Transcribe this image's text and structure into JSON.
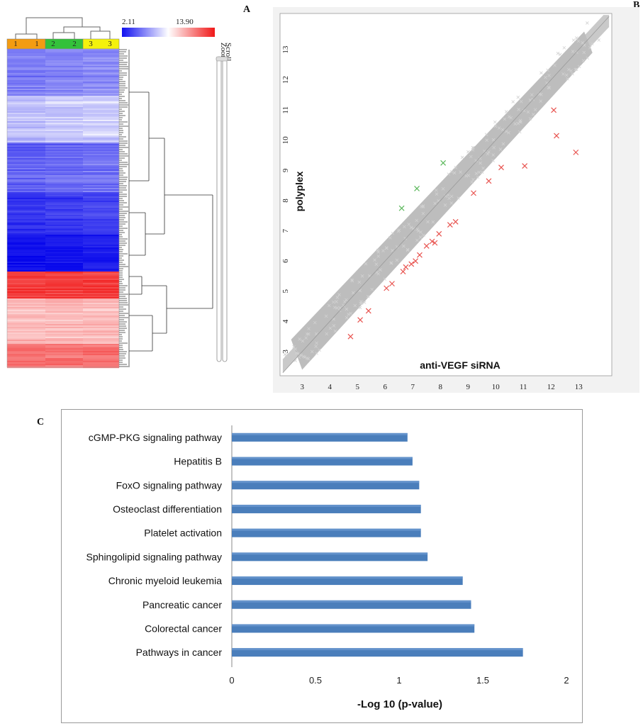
{
  "panels": {
    "a_label": "A",
    "b_label": "B",
    "c_label": "C"
  },
  "heatmap": {
    "scale_min": "2.11",
    "scale_max": "13.90",
    "sample_labels": [
      "1",
      "1",
      "2",
      "2",
      "3",
      "3"
    ],
    "side_controls": [
      "Zoom",
      "Scroll"
    ],
    "colors": {
      "low": "#1010f0",
      "mid": "#ffffff",
      "high": "#f01818",
      "group1": "#f39c12",
      "group2": "#33c13a",
      "group3": "#f4f20c"
    }
  },
  "chart_data": [
    {
      "id": "scatter",
      "type": "scatter",
      "xlabel": "anti-VEGF siRNA",
      "ylabel": "polyplex",
      "xlim": [
        2.2,
        14.2
      ],
      "ylim": [
        2.2,
        14.2
      ],
      "xticks": [
        3,
        4,
        5,
        6,
        7,
        8,
        9,
        10,
        11,
        12,
        13
      ],
      "yticks": [
        3,
        4,
        5,
        6,
        7,
        8,
        9,
        10,
        11,
        12,
        13
      ],
      "colors": {
        "bulk": "#c8c8c8",
        "up": "#5cb85c",
        "down": "#e8534f"
      },
      "up_points": [
        [
          6.6,
          7.75
        ],
        [
          7.15,
          8.4
        ],
        [
          8.1,
          9.25
        ]
      ],
      "down_points": [
        [
          4.75,
          3.5
        ],
        [
          5.1,
          4.05
        ],
        [
          5.4,
          4.35
        ],
        [
          6.05,
          5.1
        ],
        [
          6.25,
          5.25
        ],
        [
          6.65,
          5.65
        ],
        [
          6.75,
          5.8
        ],
        [
          6.95,
          5.9
        ],
        [
          7.1,
          6.0
        ],
        [
          7.25,
          6.2
        ],
        [
          7.5,
          6.5
        ],
        [
          7.7,
          6.65
        ],
        [
          7.8,
          6.6
        ],
        [
          7.95,
          6.9
        ],
        [
          8.35,
          7.2
        ],
        [
          8.55,
          7.3
        ],
        [
          9.2,
          8.25
        ],
        [
          9.75,
          8.65
        ],
        [
          10.2,
          9.1
        ],
        [
          11.05,
          9.15
        ],
        [
          12.1,
          11.0
        ],
        [
          12.2,
          10.15
        ],
        [
          12.9,
          9.6
        ]
      ]
    },
    {
      "id": "kegg",
      "type": "bar",
      "orientation": "horizontal",
      "xlabel": "-Log 10 (p-value)",
      "xlim": [
        0,
        2
      ],
      "xticks": [
        "0",
        "0.5",
        "1",
        "1.5",
        "2"
      ],
      "bar_color": "#4a7ebb",
      "categories": [
        "cGMP-PKG signaling pathway",
        "Hepatitis B",
        "FoxO signaling pathway",
        "Osteoclast differentiation",
        "Platelet activation",
        "Sphingolipid signaling pathway",
        "Chronic myeloid leukemia",
        "Pancreatic cancer",
        "Colorectal cancer",
        "Pathways in cancer"
      ],
      "values": [
        1.05,
        1.08,
        1.12,
        1.13,
        1.13,
        1.17,
        1.38,
        1.43,
        1.45,
        1.74
      ]
    }
  ]
}
